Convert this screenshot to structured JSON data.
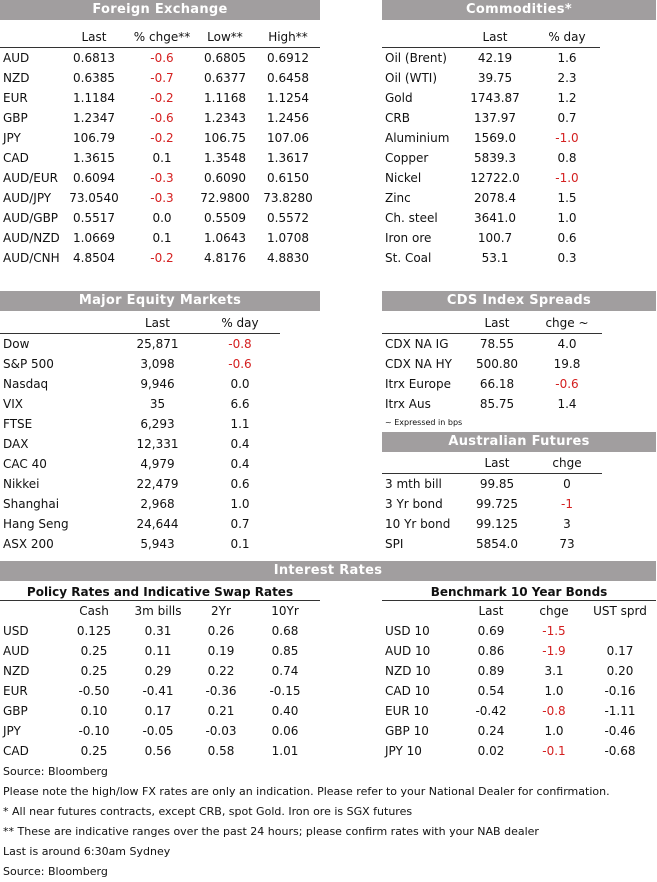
{
  "fx": {
    "title": "Foreign Exchange",
    "headers": [
      "",
      "Last",
      "% chge**",
      "Low**",
      "High**"
    ],
    "rows": [
      [
        "AUD",
        "0.6813",
        "-0.6",
        "0.6805",
        "0.6912"
      ],
      [
        "NZD",
        "0.6385",
        "-0.7",
        "0.6377",
        "0.6458"
      ],
      [
        "EUR",
        "1.1184",
        "-0.2",
        "1.1168",
        "1.1254"
      ],
      [
        "GBP",
        "1.2347",
        "-0.6",
        "1.2343",
        "1.2456"
      ],
      [
        "JPY",
        "106.79",
        "-0.2",
        "106.75",
        "107.06"
      ],
      [
        "CAD",
        "1.3615",
        "0.1",
        "1.3548",
        "1.3617"
      ],
      [
        "AUD/EUR",
        "0.6094",
        "-0.3",
        "0.6090",
        "0.6150"
      ],
      [
        "AUD/JPY",
        "73.0540",
        "-0.3",
        "72.9800",
        "73.8280"
      ],
      [
        "AUD/GBP",
        "0.5517",
        "0.0",
        "0.5509",
        "0.5572"
      ],
      [
        "AUD/NZD",
        "1.0669",
        "0.1",
        "1.0643",
        "1.0708"
      ],
      [
        "AUD/CNH",
        "4.8504",
        "-0.2",
        "4.8176",
        "4.8830"
      ]
    ]
  },
  "commodities": {
    "title": "Commodities*",
    "headers": [
      "",
      "Last",
      "% day"
    ],
    "rows": [
      [
        "Oil (Brent)",
        "42.19",
        "1.6"
      ],
      [
        "Oil (WTI)",
        "39.75",
        "2.3"
      ],
      [
        "Gold",
        "1743.87",
        "1.2"
      ],
      [
        "CRB",
        "137.97",
        "0.7"
      ],
      [
        "Aluminium",
        "1569.0",
        "-1.0"
      ],
      [
        "Copper",
        "5839.3",
        "0.8"
      ],
      [
        "Nickel",
        "12722.0",
        "-1.0"
      ],
      [
        "Zinc",
        "2078.4",
        "1.5"
      ],
      [
        "Ch. steel",
        "3641.0",
        "1.0"
      ],
      [
        "Iron ore",
        "100.7",
        "0.6"
      ],
      [
        "St. Coal",
        "53.1",
        "0.3"
      ]
    ]
  },
  "equity": {
    "title": "Major Equity Markets",
    "headers": [
      "",
      "Last",
      "% day"
    ],
    "rows": [
      [
        "Dow",
        "25,871",
        "-0.8"
      ],
      [
        "S&P 500",
        "3,098",
        "-0.6"
      ],
      [
        "Nasdaq",
        "9,946",
        "0.0"
      ],
      [
        "VIX",
        "35",
        "6.6"
      ],
      [
        "FTSE",
        "6,293",
        "1.1"
      ],
      [
        "DAX",
        "12,331",
        "0.4"
      ],
      [
        "CAC 40",
        "4,979",
        "0.4"
      ],
      [
        "Nikkei",
        "22,479",
        "0.6"
      ],
      [
        "Shanghai",
        "2,968",
        "1.0"
      ],
      [
        "Hang Seng",
        "24,644",
        "0.7"
      ],
      [
        "ASX 200",
        "5,943",
        "0.1"
      ]
    ]
  },
  "cds": {
    "title": "CDS Index Spreads",
    "headers": [
      "",
      "Last",
      "chge ~"
    ],
    "rows": [
      [
        "CDX NA IG",
        "78.55",
        "4.0"
      ],
      [
        "CDX NA HY",
        "500.80",
        "19.8"
      ],
      [
        "Itrx Europe",
        "66.18",
        "-0.6"
      ],
      [
        "Itrx Aus",
        "85.75",
        "1.4"
      ]
    ],
    "footnote": "~ Expressed in bps"
  },
  "futures": {
    "title": "Australian Futures",
    "headers": [
      "",
      "Last",
      "chge"
    ],
    "rows": [
      [
        "3 mth bill",
        "99.85",
        "0"
      ],
      [
        "3 Yr bond",
        "99.725",
        "-1"
      ],
      [
        "10 Yr bond",
        "99.125",
        "3"
      ],
      [
        "SPI",
        "5854.0",
        "73"
      ]
    ]
  },
  "interest": {
    "title": "Interest Rates",
    "policy": {
      "title": "Policy Rates and Indicative Swap Rates",
      "headers": [
        "",
        "Cash",
        "3m bills",
        "2Yr",
        "10Yr"
      ],
      "rows": [
        [
          "USD",
          "0.125",
          "0.31",
          "0.26",
          "0.68"
        ],
        [
          "AUD",
          "0.25",
          "0.11",
          "0.19",
          "0.85"
        ],
        [
          "NZD",
          "0.25",
          "0.29",
          "0.22",
          "0.74"
        ],
        [
          "EUR",
          "-0.50",
          "-0.41",
          "-0.36",
          "-0.15"
        ],
        [
          "GBP",
          "0.10",
          "0.17",
          "0.21",
          "0.40"
        ],
        [
          "JPY",
          "-0.10",
          "-0.05",
          "-0.03",
          "0.06"
        ],
        [
          "CAD",
          "0.25",
          "0.56",
          "0.58",
          "1.01"
        ]
      ]
    },
    "bonds": {
      "title": "Benchmark 10 Year Bonds",
      "headers": [
        "",
        "Last",
        "chge",
        "UST sprd"
      ],
      "rows": [
        [
          "USD 10",
          "0.69",
          "-1.5",
          ""
        ],
        [
          "AUD 10",
          "0.86",
          "-1.9",
          "0.17"
        ],
        [
          "NZD 10",
          "0.89",
          "3.1",
          "0.20"
        ],
        [
          "CAD 10",
          "0.54",
          "1.0",
          "-0.16"
        ],
        [
          "EUR 10",
          "-0.42",
          "-0.8",
          "-1.11"
        ],
        [
          "GBP 10",
          "0.24",
          "1.0",
          "-0.46"
        ],
        [
          "JPY 10",
          "0.02",
          "-0.1",
          "-0.68"
        ]
      ]
    }
  },
  "notes": [
    "Source: Bloomberg",
    "Please note the high/low FX rates are only an indication. Please refer to your National Dealer for confirmation.",
    "* All near futures contracts, except CRB, spot Gold.  Iron ore is SGX futures",
    "** These are indicative ranges over the past 24 hours; please confirm rates with your NAB dealer",
    "Last is around 6:30am Sydney",
    "Source: Bloomberg"
  ],
  "colors": {
    "header_bg": "#a19e9f",
    "negative": "#d42020"
  }
}
